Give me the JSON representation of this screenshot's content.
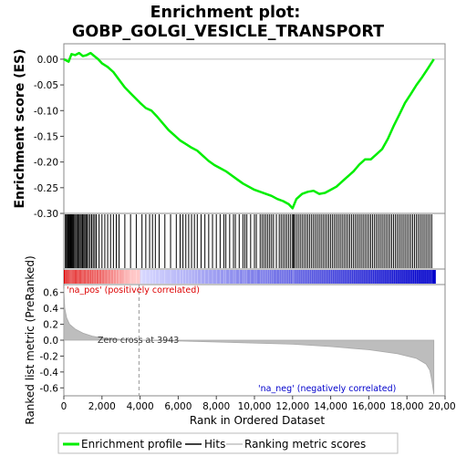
{
  "chart_data": {
    "type": "line",
    "title_line1": "Enrichment plot:",
    "title_line2": "GOBP_GOLGI_VESICLE_TRANSPORT",
    "n_ranked": 19410,
    "es_panel": {
      "ylabel": "Enrichment score (ES)",
      "ylim": [
        -0.3,
        0.03
      ],
      "yticks": [
        "0.00",
        "-0.05",
        "-0.10",
        "-0.15",
        "-0.20",
        "-0.25",
        "-0.30"
      ],
      "ytick_values": [
        0.0,
        -0.05,
        -0.1,
        -0.15,
        -0.2,
        -0.25,
        -0.3
      ],
      "series_name": "Enrichment profile",
      "color": "#00ee00",
      "x": [
        0,
        250,
        400,
        600,
        800,
        1000,
        1200,
        1400,
        1600,
        1800,
        2000,
        2300,
        2600,
        2900,
        3200,
        3600,
        4000,
        4300,
        4600,
        4900,
        5200,
        5500,
        5800,
        6100,
        6400,
        6700,
        7000,
        7300,
        7600,
        7900,
        8200,
        8500,
        8800,
        9100,
        9400,
        9700,
        10000,
        10300,
        10600,
        10900,
        11200,
        11500,
        11800,
        12000,
        12200,
        12500,
        12800,
        13100,
        13400,
        13700,
        14000,
        14300,
        14600,
        14900,
        15200,
        15500,
        15800,
        16100,
        16400,
        16700,
        17000,
        17300,
        17600,
        17900,
        18200,
        18500,
        18800,
        19100,
        19410
      ],
      "y": [
        0.0,
        -0.005,
        0.01,
        0.008,
        0.012,
        0.006,
        0.008,
        0.012,
        0.006,
        0.0,
        -0.008,
        -0.015,
        -0.025,
        -0.04,
        -0.055,
        -0.07,
        -0.085,
        -0.095,
        -0.1,
        -0.112,
        -0.125,
        -0.138,
        -0.148,
        -0.158,
        -0.165,
        -0.172,
        -0.178,
        -0.188,
        -0.198,
        -0.206,
        -0.212,
        -0.218,
        -0.226,
        -0.234,
        -0.242,
        -0.248,
        -0.254,
        -0.258,
        -0.262,
        -0.266,
        -0.272,
        -0.276,
        -0.282,
        -0.29,
        -0.272,
        -0.262,
        -0.258,
        -0.256,
        -0.262,
        -0.26,
        -0.254,
        -0.248,
        -0.238,
        -0.228,
        -0.218,
        -0.205,
        -0.195,
        -0.195,
        -0.185,
        -0.175,
        -0.155,
        -0.13,
        -0.108,
        -0.085,
        -0.068,
        -0.05,
        -0.035,
        -0.018,
        0.0
      ]
    },
    "hits": [
      80,
      130,
      180,
      220,
      260,
      300,
      340,
      380,
      420,
      460,
      500,
      560,
      620,
      680,
      740,
      800,
      860,
      920,
      980,
      1040,
      1100,
      1160,
      1220,
      1300,
      1380,
      1460,
      1540,
      1620,
      1700,
      1850,
      2000,
      2150,
      2300,
      2450,
      2600,
      2750,
      2900,
      3200,
      3500,
      3800,
      4100,
      4300,
      4500,
      4650,
      4800,
      5000,
      5300,
      5600,
      5900,
      6100,
      6250,
      6400,
      6550,
      6700,
      6850,
      7000,
      7200,
      7400,
      7600,
      7800,
      8000,
      8200,
      8400,
      8500,
      8700,
      8900,
      9000,
      9200,
      9400,
      9500,
      9600,
      9800,
      10000,
      10100,
      10300,
      10400,
      10500,
      10600,
      10700,
      10800,
      10900,
      11000,
      11150,
      11300,
      11400,
      11500,
      11600,
      11700,
      11800,
      11900,
      12000,
      12050,
      12100,
      12200,
      12300,
      12400,
      12500,
      12600,
      12700,
      12800,
      12900,
      13000,
      13100,
      13200,
      13300,
      13400,
      13500,
      13600,
      13700,
      13800,
      13900,
      14000,
      14100,
      14200,
      14300,
      14400,
      14500,
      14600,
      14700,
      14800,
      14900,
      15000,
      15100,
      15200,
      15300,
      15400,
      15500,
      15600,
      15700,
      15800,
      15900,
      16000,
      16100,
      16200,
      16300,
      16400,
      16500,
      16600,
      16700,
      16800,
      16900,
      17000,
      17100,
      17200,
      17300,
      17400,
      17500,
      17600,
      17700,
      17800,
      17900,
      18000,
      18100,
      18200,
      18300,
      18400,
      18500,
      18600,
      18700,
      18800,
      18900,
      19000,
      19100,
      19200,
      19300
    ],
    "metric_panel": {
      "ylabel": "Ranked list metric (PreRanked)",
      "ylim": [
        -0.7,
        0.7
      ],
      "yticks": [
        "0.6",
        "0.4",
        "0.2",
        "0.0",
        "-0.2",
        "-0.4",
        "-0.6"
      ],
      "ytick_values": [
        0.6,
        0.4,
        0.2,
        0.0,
        -0.2,
        -0.4,
        -0.6
      ],
      "x": [
        0,
        50,
        150,
        300,
        600,
        1000,
        1500,
        2000,
        3000,
        3943,
        6000,
        9000,
        12000,
        14000,
        16000,
        17500,
        18500,
        19000,
        19200,
        19300,
        19410
      ],
      "y": [
        0.65,
        0.4,
        0.28,
        0.2,
        0.14,
        0.09,
        0.05,
        0.03,
        0.01,
        0.0,
        -0.01,
        -0.03,
        -0.05,
        -0.08,
        -0.12,
        -0.17,
        -0.23,
        -0.3,
        -0.38,
        -0.5,
        -0.68
      ],
      "zero_cross_rank": 3943,
      "zero_cross_label": "Zero cross at 3943",
      "pos_label": "'na_pos' (positively correlated)",
      "neg_label": "'na_neg' (negatively correlated)",
      "pos_color": "#dd0000",
      "neg_color": "#0000cc"
    },
    "xaxis": {
      "xlabel": "Rank in Ordered Dataset",
      "xlim": [
        0,
        20000
      ],
      "xticks": [
        "0",
        "2,000",
        "4,000",
        "6,000",
        "8,000",
        "10,000",
        "12,000",
        "14,000",
        "16,000",
        "18,000",
        "20,000"
      ],
      "xtick_values": [
        0,
        2000,
        4000,
        6000,
        8000,
        10000,
        12000,
        14000,
        16000,
        18000,
        20000
      ]
    },
    "legend": {
      "position": "bottom",
      "items": [
        {
          "label": "Enrichment profile",
          "color": "#00ee00",
          "kind": "thick-line"
        },
        {
          "label": "Hits",
          "color": "#000000",
          "kind": "line"
        },
        {
          "label": "Ranking metric scores",
          "color": "#c0c0c0",
          "kind": "line"
        }
      ]
    }
  }
}
